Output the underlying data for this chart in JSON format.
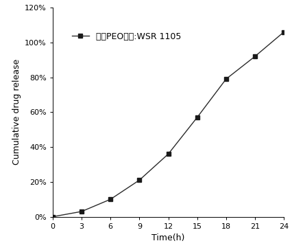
{
  "x": [
    0,
    3,
    6,
    9,
    12,
    15,
    18,
    21,
    24
  ],
  "y": [
    0.0,
    0.03,
    0.1,
    0.21,
    0.36,
    0.57,
    0.79,
    0.92,
    1.06
  ],
  "line_color": "#2b2b2b",
  "marker": "s",
  "marker_color": "#1a1a1a",
  "marker_size": 5,
  "legend_label": "药层PEO型号:WSR 1105",
  "xlabel": "Time(h)",
  "ylabel": "Cumulative drug release",
  "xlim": [
    0,
    24
  ],
  "ylim": [
    0,
    1.2
  ],
  "xticks": [
    0,
    3,
    6,
    9,
    12,
    15,
    18,
    21,
    24
  ],
  "yticks": [
    0.0,
    0.2,
    0.4,
    0.6,
    0.8,
    1.0,
    1.2
  ],
  "ytick_labels": [
    "0%",
    "20%",
    "40%",
    "60%",
    "80%",
    "100%",
    "120%"
  ],
  "axis_fontsize": 9,
  "tick_fontsize": 8,
  "legend_fontsize": 9,
  "background_color": "#ffffff"
}
